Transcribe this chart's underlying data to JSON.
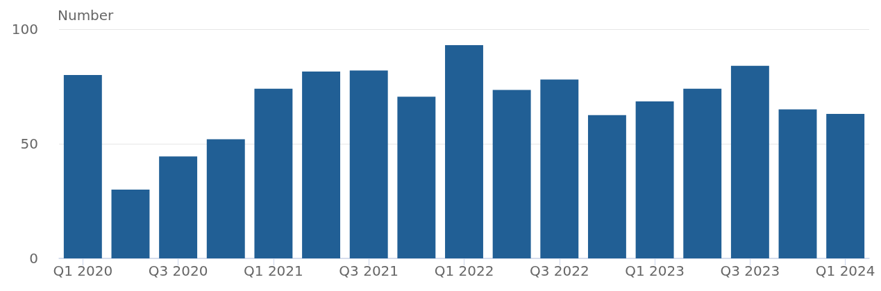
{
  "chart_data": {
    "type": "bar",
    "ylabel": "Number",
    "categories": [
      "Q1 2020",
      null,
      "Q3 2020",
      null,
      "Q1 2021",
      null,
      "Q3 2021",
      null,
      "Q1 2022",
      null,
      "Q3 2022",
      null,
      "Q1 2023",
      null,
      "Q3 2023",
      null,
      "Q1 2024"
    ],
    "values": [
      80,
      30,
      44.5,
      52,
      74,
      81.5,
      82,
      70.5,
      93,
      73.5,
      78,
      62.5,
      68.5,
      74,
      84,
      65,
      63
    ],
    "color": "#215f95",
    "ylim": [
      0,
      100
    ],
    "yticks": [
      0,
      50,
      100
    ],
    "grid": "y"
  }
}
